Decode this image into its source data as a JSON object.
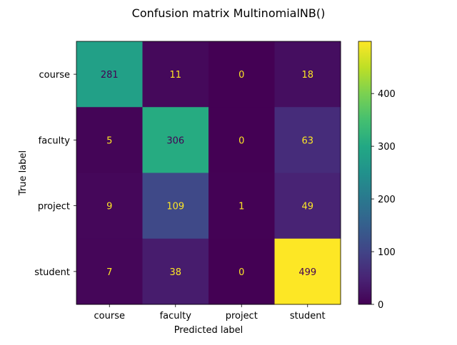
{
  "chart_data": {
    "type": "heatmap",
    "title": "Confusion matrix MultinomialNB()",
    "xlabel": "Predicted label",
    "ylabel": "True label",
    "x_categories": [
      "course",
      "faculty",
      "project",
      "student"
    ],
    "y_categories": [
      "course",
      "faculty",
      "project",
      "student"
    ],
    "values": [
      [
        281,
        11,
        0,
        18
      ],
      [
        5,
        306,
        0,
        63
      ],
      [
        9,
        109,
        1,
        49
      ],
      [
        7,
        38,
        0,
        499
      ]
    ],
    "colormap": "viridis",
    "color_range": [
      0,
      499
    ],
    "colorbar_ticks": [
      "0",
      "100",
      "200",
      "300",
      "400"
    ],
    "grid": false,
    "colors": {
      "low_text": "#fde725",
      "high_text": "#440154"
    }
  }
}
